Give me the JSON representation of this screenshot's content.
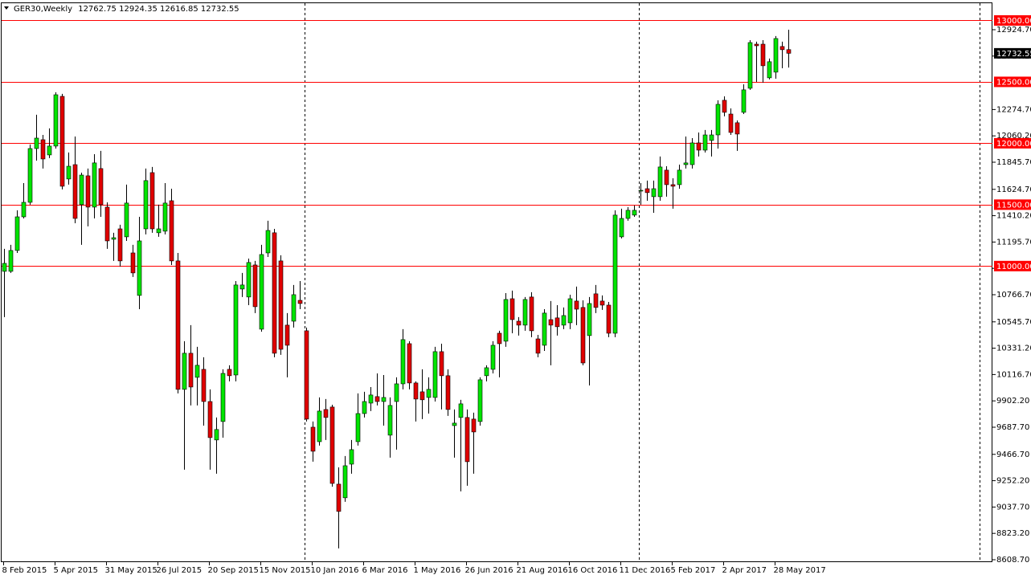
{
  "chart_data": {
    "type": "candlestick",
    "title": "GER30,Weekly",
    "header_values": [
      12762.75,
      12924.35,
      12616.85,
      12732.55
    ],
    "up_color": "#00e400",
    "down_color": "#e00000",
    "wick_color": "#000000",
    "level_color": "#ff0000",
    "last_price": 12732.55,
    "ylim": [
      8589,
      13147
    ],
    "yticks": [
      {
        "value": 12924.7,
        "label": "12924.70"
      },
      {
        "value": 12710.2,
        "label": "12710.20"
      },
      {
        "value": 12274.7,
        "label": "12274.70"
      },
      {
        "value": 12060.2,
        "label": "12060.20"
      },
      {
        "value": 11845.7,
        "label": "11845.70"
      },
      {
        "value": 11624.7,
        "label": "11624.70"
      },
      {
        "value": 11410.2,
        "label": "11410.20"
      },
      {
        "value": 11195.7,
        "label": "11195.70"
      },
      {
        "value": 10981.2,
        "label": "10981.20"
      },
      {
        "value": 10766.7,
        "label": "10766.70"
      },
      {
        "value": 10545.7,
        "label": "10545.70"
      },
      {
        "value": 10331.2,
        "label": "10331.20"
      },
      {
        "value": 10116.7,
        "label": "10116.70"
      },
      {
        "value": 9902.2,
        "label": "9902.20"
      },
      {
        "value": 9687.7,
        "label": "9687.70"
      },
      {
        "value": 9466.7,
        "label": "9466.70"
      },
      {
        "value": 9252.2,
        "label": "9252.20"
      },
      {
        "value": 9037.7,
        "label": "9037.70"
      },
      {
        "value": 8823.2,
        "label": "8823.20"
      },
      {
        "value": 8608.7,
        "label": "8608.70"
      }
    ],
    "hlines": [
      {
        "value": 13000,
        "label": "13000.00"
      },
      {
        "value": 12500,
        "label": "12500.00"
      },
      {
        "value": 12000,
        "label": "12000.00"
      },
      {
        "value": 11500,
        "label": "11500.00"
      },
      {
        "value": 11000,
        "label": "11000.00"
      }
    ],
    "categories": [
      "8 Feb 2015",
      null,
      null,
      null,
      null,
      null,
      null,
      null,
      "5 Apr 2015",
      null,
      null,
      null,
      null,
      null,
      null,
      null,
      "31 May 2015",
      null,
      null,
      null,
      null,
      null,
      null,
      null,
      "26 Jul 2015",
      null,
      null,
      null,
      null,
      null,
      null,
      null,
      "20 Sep 2015",
      null,
      null,
      null,
      null,
      null,
      null,
      null,
      "15 Nov 2015",
      null,
      null,
      null,
      null,
      null,
      null,
      null,
      "10 Jan 2016",
      null,
      null,
      null,
      null,
      null,
      null,
      null,
      "6 Mar 2016",
      null,
      null,
      null,
      null,
      null,
      null,
      null,
      "1 May 2016",
      null,
      null,
      null,
      null,
      null,
      null,
      null,
      "26 Jun 2016",
      null,
      null,
      null,
      null,
      null,
      null,
      null,
      "21 Aug 2016",
      null,
      null,
      null,
      null,
      null,
      null,
      null,
      "16 Oct 2016",
      null,
      null,
      null,
      null,
      null,
      null,
      null,
      "11 Dec 2016",
      null,
      null,
      null,
      null,
      null,
      null,
      null,
      "5 Feb 2017",
      null,
      null,
      null,
      null,
      null,
      null,
      null,
      "2 Apr 2017",
      null,
      null,
      null,
      null,
      null,
      null,
      null,
      "28 May 2017",
      null,
      null
    ],
    "open": [
      10957,
      10957,
      11127,
      11401,
      11519,
      11957,
      12029,
      11905,
      11977,
      12382,
      11709,
      11826,
      11500,
      11735,
      11480,
      11794,
      11480,
      11218,
      11303,
      11238,
      11107,
      10761,
      11303,
      11761,
      11271,
      11284,
      11532,
      11042,
      9996,
      10290,
      10094,
      10159,
      9897,
      9584,
      9734,
      10159,
      10113,
      10813,
      10748,
      11009,
      10486,
      11107,
      11271,
      11042,
      10519,
      10551,
      10721,
      10473,
      9688,
      9570,
      9832,
      9852,
      9224,
      9113,
      9387,
      9570,
      9799,
      9884,
      9937,
      9897,
      9623,
      9897,
      10041,
      10368,
      10048,
      9976,
      9930,
      9930,
      10303,
      10107,
      9701,
      9767,
      9767,
      9754,
      9734,
      10107,
      10159,
      10453,
      10388,
      10734,
      10551,
      10519,
      10748,
      10407,
      10355,
      10564,
      10578,
      10519,
      10538,
      10715,
      10663,
      10434,
      10774,
      10715,
      10682,
      10453,
      11238,
      11388,
      11415,
      11611,
      11630,
      11565,
      11565,
      11781,
      11663,
      11663,
      11826,
      11826,
      12003,
      11944,
      12023,
      12068,
      12350,
      12238,
      12167,
      12252,
      12448,
      12807,
      12807,
      12533,
      12579,
      12788,
      12762.75
    ],
    "high": [
      11140,
      11173,
      11454,
      11676,
      11990,
      12232,
      12068,
      12121,
      12415,
      12402,
      11925,
      12055,
      11761,
      11794,
      11911,
      11938,
      11519,
      11271,
      11336,
      11663,
      11173,
      11401,
      11794,
      11807,
      11500,
      11676,
      11630,
      11107,
      10388,
      10519,
      10342,
      10257,
      9996,
      9767,
      10159,
      10192,
      10878,
      10944,
      11061,
      11042,
      11173,
      11369,
      11303,
      11088,
      10617,
      10846,
      10878,
      10499,
      9734,
      9930,
      9917,
      9871,
      9361,
      9453,
      9584,
      9963,
      9976,
      10015,
      10126,
      10113,
      9930,
      10094,
      10486,
      10388,
      10061,
      10159,
      10094,
      10342,
      10368,
      10159,
      9832,
      9911,
      9832,
      9806,
      10094,
      10192,
      10388,
      10473,
      10780,
      10800,
      10584,
      10748,
      10787,
      10440,
      10649,
      10715,
      10682,
      10663,
      10767,
      10833,
      10721,
      10748,
      10846,
      10761,
      10708,
      11454,
      11467,
      11480,
      11493,
      11676,
      11696,
      11696,
      11892,
      11813,
      11715,
      11826,
      12055,
      12042,
      12088,
      12108,
      12108,
      12350,
      12382,
      12284,
      12186,
      12480,
      12840,
      12827,
      12840,
      12690,
      12873,
      12827,
      12924.35
    ],
    "low": [
      10584,
      10944,
      11107,
      11388,
      11500,
      11859,
      11794,
      11879,
      11957,
      11624,
      11663,
      11349,
      11173,
      11323,
      11388,
      11401,
      11140,
      11042,
      10996,
      11205,
      10911,
      10649,
      11258,
      11271,
      11238,
      11258,
      11009,
      9963,
      9342,
      9865,
      9865,
      9701,
      9342,
      9309,
      9603,
      10061,
      10061,
      10748,
      10682,
      10617,
      10466,
      11074,
      10257,
      10277,
      10094,
      10499,
      10649,
      9734,
      9407,
      9538,
      9584,
      9204,
      8701,
      9080,
      9309,
      9538,
      9767,
      9819,
      9865,
      9701,
      9440,
      9505,
      9996,
      9996,
      9734,
      9754,
      9799,
      9897,
      9832,
      9780,
      9440,
      9165,
      9211,
      9309,
      9701,
      10061,
      10126,
      10094,
      10342,
      10453,
      10434,
      10473,
      10421,
      10257,
      10309,
      10192,
      10434,
      10486,
      10486,
      10519,
      10192,
      10028,
      10617,
      10643,
      10421,
      10421,
      11225,
      11369,
      11401,
      11500,
      11532,
      11434,
      11532,
      11565,
      11467,
      11630,
      11794,
      11794,
      11892,
      11925,
      11892,
      11957,
      12219,
      12068,
      11938,
      12238,
      12435,
      12500,
      12494,
      12520,
      12526,
      12611,
      12616.85
    ],
    "close": [
      11022,
      11127,
      11401,
      11519,
      11957,
      12042,
      11872,
      11977,
      12395,
      11650,
      11813,
      11388,
      11741,
      11480,
      11840,
      11500,
      11205,
      11231,
      11042,
      11513,
      10944,
      11205,
      11696,
      11303,
      11303,
      11513,
      11042,
      9996,
      10290,
      10015,
      10192,
      9897,
      9603,
      9669,
      10126,
      10107,
      10846,
      10846,
      11029,
      10669,
      11094,
      11290,
      10290,
      10322,
      10355,
      10767,
      10695,
      9754,
      9492,
      9819,
      9767,
      9230,
      9002,
      9374,
      9505,
      9799,
      9897,
      9950,
      9897,
      9930,
      9865,
      10041,
      10401,
      10048,
      9917,
      9911,
      9996,
      10303,
      10107,
      9832,
      9721,
      9878,
      9407,
      9649,
      10074,
      10172,
      10355,
      10368,
      10728,
      10564,
      10519,
      10728,
      10473,
      10290,
      10617,
      10519,
      10506,
      10597,
      10734,
      10649,
      10211,
      10695,
      10663,
      10682,
      10453,
      11415,
      11388,
      11454,
      11454,
      11617,
      11598,
      11630,
      11807,
      11663,
      11650,
      11781,
      11840,
      12003,
      11944,
      12068,
      12068,
      12317,
      12252,
      12088,
      12075,
      12435,
      12820,
      12794,
      12631,
      12664,
      12853,
      12762,
      12732.55
    ]
  }
}
